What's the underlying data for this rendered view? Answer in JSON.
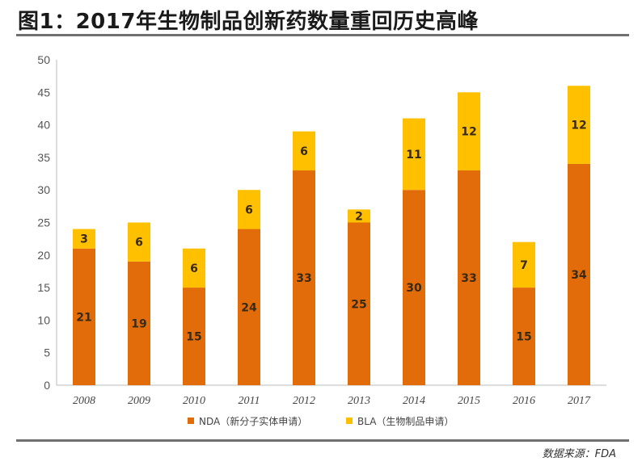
{
  "title": "图1：2017年生物制品创新药数量重回历史高峰",
  "source": "数据来源：FDA",
  "colors": {
    "nda": "#E36C0A",
    "bla": "#FFC000"
  },
  "chart_data": {
    "type": "bar",
    "stacked": true,
    "categories": [
      "2008",
      "2009",
      "2010",
      "2011",
      "2012",
      "2013",
      "2014",
      "2015",
      "2016",
      "2017"
    ],
    "series": [
      {
        "name": "NDA（新分子实体申请）",
        "values": [
          21,
          19,
          15,
          24,
          33,
          25,
          30,
          33,
          15,
          34
        ]
      },
      {
        "name": "BLA（生物制品申请）",
        "values": [
          3,
          6,
          6,
          6,
          6,
          2,
          11,
          12,
          7,
          12
        ]
      }
    ],
    "ylim": [
      0,
      50
    ],
    "yticks": [
      0,
      5,
      10,
      15,
      20,
      25,
      30,
      35,
      40,
      45,
      50
    ],
    "grid": false,
    "legend": "bottom-center"
  }
}
